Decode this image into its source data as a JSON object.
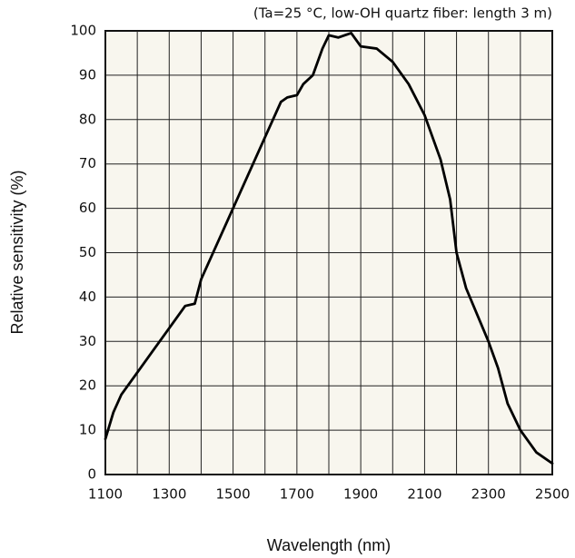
{
  "chart_data": {
    "type": "line",
    "subtitle": "(Ta=25 °C, low-OH quartz fiber: length 3 m)",
    "x_label": "Wavelength (nm)",
    "y_label": "Relative sensitivity (%)",
    "x": [
      1100,
      1125,
      1150,
      1200,
      1250,
      1300,
      1350,
      1380,
      1400,
      1450,
      1500,
      1550,
      1600,
      1650,
      1670,
      1700,
      1720,
      1750,
      1780,
      1800,
      1830,
      1870,
      1900,
      1950,
      2000,
      2050,
      2100,
      2150,
      2180,
      2200,
      2230,
      2300,
      2330,
      2360,
      2400,
      2450,
      2500
    ],
    "series": [
      {
        "color": "#000000",
        "values": [
          8,
          14,
          18,
          23,
          28,
          33,
          38,
          38.5,
          44,
          52,
          60,
          68,
          76,
          84,
          85,
          85.5,
          88,
          90,
          96,
          99,
          98.5,
          99.5,
          96.5,
          96,
          93,
          88,
          81,
          71,
          62,
          50,
          42,
          30,
          24,
          16,
          10,
          5,
          2.5
        ]
      }
    ],
    "xlim": [
      1100,
      2500
    ],
    "xticks": [
      1100,
      1300,
      1500,
      1700,
      1900,
      2100,
      2300,
      2500
    ],
    "x_minor_grid": [
      1200,
      1400,
      1600,
      1800,
      2000,
      2200,
      2400
    ],
    "ylim": [
      0,
      100
    ],
    "yticks": [
      0,
      10,
      20,
      30,
      40,
      50,
      60,
      70,
      80,
      90,
      100
    ],
    "grid": true
  }
}
